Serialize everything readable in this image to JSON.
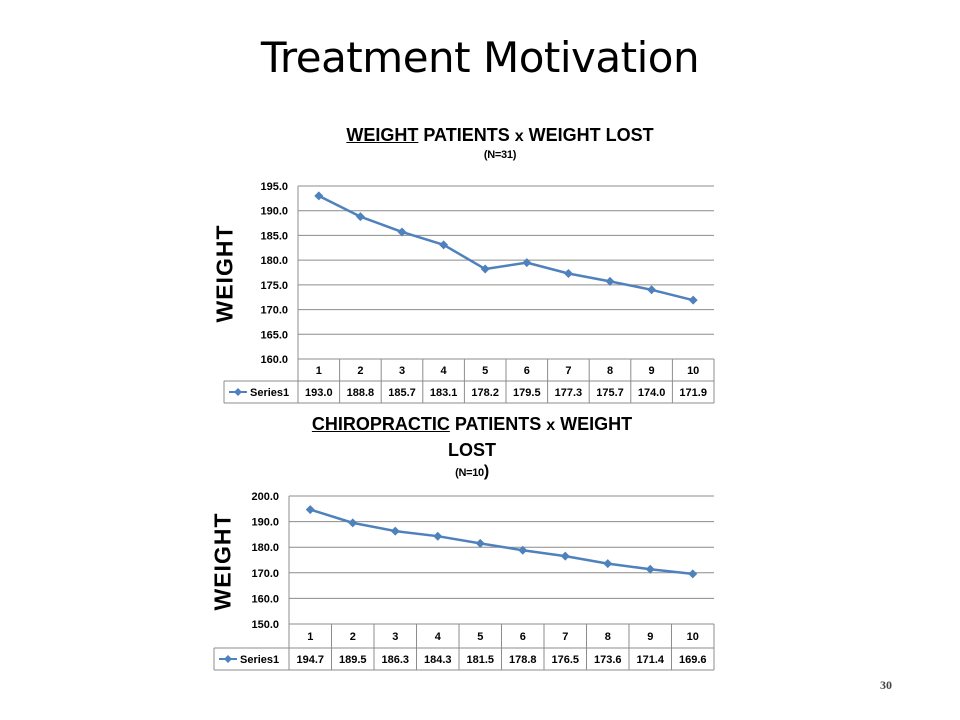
{
  "slide": {
    "title": "Treatment Motivation",
    "page_number": "30"
  },
  "chart_data": [
    {
      "type": "line",
      "title_underlined": "WEIGHT",
      "title_mid": " PATIENTS ",
      "title_x": "x",
      "title_rest": " WEIGHT LOST",
      "subtitle_text": "(N=31)",
      "ylabel": "WEIGHT",
      "categories": [
        "1",
        "2",
        "3",
        "4",
        "5",
        "6",
        "7",
        "8",
        "9",
        "10"
      ],
      "series": [
        {
          "name": "Series1",
          "values": [
            193.0,
            188.8,
            185.7,
            183.1,
            178.2,
            179.5,
            177.3,
            175.7,
            174.0,
            171.9
          ]
        }
      ],
      "value_labels": [
        "193.0",
        "188.8",
        "185.7",
        "183.1",
        "178.2",
        "179.5",
        "177.3",
        "175.7",
        "174.0",
        "171.9"
      ],
      "yticks": [
        "160.0",
        "165.0",
        "170.0",
        "175.0",
        "180.0",
        "185.0",
        "190.0",
        "195.0"
      ],
      "ylim": [
        160,
        195
      ],
      "grid": true,
      "data_table": true,
      "color": "#4F81BD"
    },
    {
      "type": "line",
      "title_underlined": "CHIROPRACTIC",
      "title_mid": " PATIENTS ",
      "title_x": "x",
      "title_rest": " WEIGHT",
      "title_line2": "LOST",
      "subtitle_text": "(N=10",
      "subtitle_paren": ")",
      "ylabel": "WEIGHT",
      "categories": [
        "1",
        "2",
        "3",
        "4",
        "5",
        "6",
        "7",
        "8",
        "9",
        "10"
      ],
      "series": [
        {
          "name": "Series1",
          "values": [
            194.7,
            189.5,
            186.3,
            184.3,
            181.5,
            178.8,
            176.5,
            173.6,
            171.4,
            169.6
          ]
        }
      ],
      "value_labels": [
        "194.7",
        "189.5",
        "186.3",
        "184.3",
        "181.5",
        "178.8",
        "176.5",
        "173.6",
        "171.4",
        "169.6"
      ],
      "yticks": [
        "150.0",
        "160.0",
        "170.0",
        "180.0",
        "190.0",
        "200.0"
      ],
      "ylim": [
        150,
        200
      ],
      "grid": true,
      "data_table": true,
      "color": "#4F81BD"
    }
  ]
}
